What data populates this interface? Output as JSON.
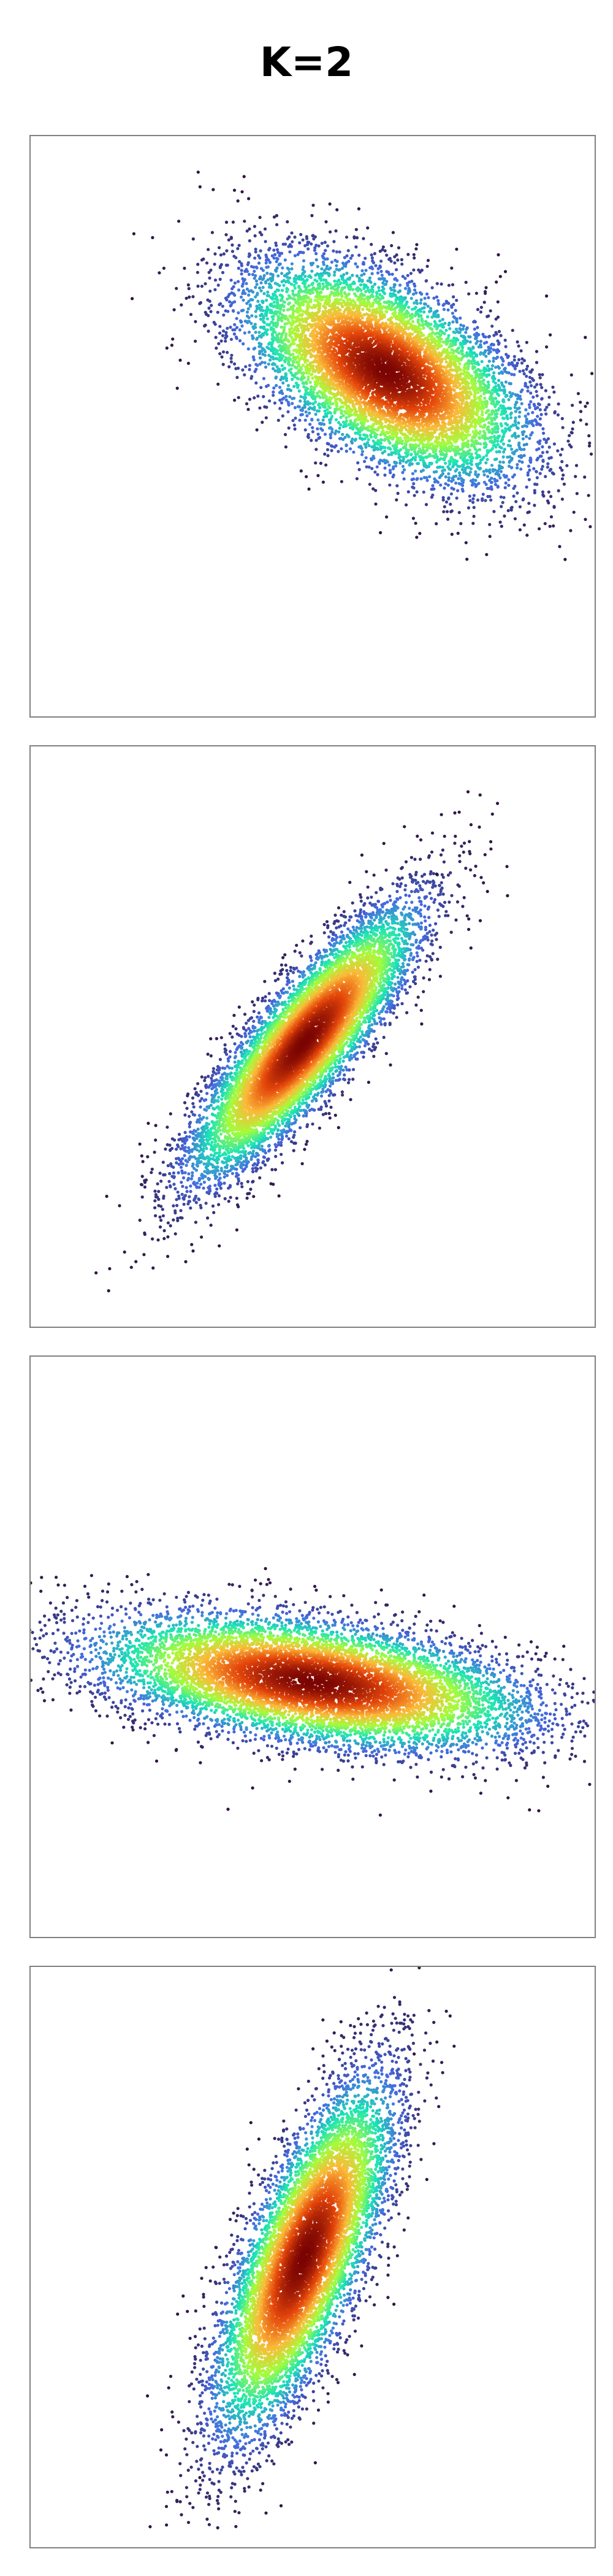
{
  "figure": {
    "title": "K=2"
  },
  "chart_data": [
    {
      "type": "scatter",
      "title": "",
      "xlabel": "",
      "ylabel": "",
      "grid": false,
      "xlim": [
        0,
        1
      ],
      "ylim": [
        0,
        1
      ],
      "colormap": "turbo",
      "colormap_stops": [
        "#30123b",
        "#4669e0",
        "#1ae4b6",
        "#a4fc3b",
        "#fbb938",
        "#e4460a",
        "#7a0403"
      ],
      "distribution": {
        "kind": "gaussian",
        "center": [
          0.63,
          0.595
        ],
        "major_axis_sd": 0.137,
        "minor_axis_sd": 0.069,
        "major_axis_angle_deg": -31,
        "point_count": 9000
      },
      "outliers": [
        [
          0.18,
          0.72
        ]
      ]
    },
    {
      "type": "scatter",
      "title": "",
      "xlabel": "",
      "ylabel": "",
      "grid": false,
      "xlim": [
        0,
        1
      ],
      "ylim": [
        0,
        1
      ],
      "colormap": "turbo",
      "colormap_stops": [
        "#30123b",
        "#4669e0",
        "#1ae4b6",
        "#a4fc3b",
        "#fbb938",
        "#e4460a",
        "#7a0403"
      ],
      "distribution": {
        "kind": "gaussian",
        "center": [
          0.485,
          0.49
        ],
        "major_axis_sd": 0.145,
        "minor_axis_sd": 0.04,
        "major_axis_angle_deg": 50,
        "point_count": 9000
      },
      "outliers": [
        [
          0.81,
          0.75
        ],
        [
          0.72,
          0.78
        ]
      ]
    },
    {
      "type": "scatter",
      "title": "",
      "xlabel": "",
      "ylabel": "",
      "grid": false,
      "xlim": [
        0,
        1
      ],
      "ylim": [
        0,
        1
      ],
      "colormap": "turbo",
      "colormap_stops": [
        "#30123b",
        "#4669e0",
        "#1ae4b6",
        "#a4fc3b",
        "#fbb938",
        "#e4460a",
        "#7a0403"
      ],
      "distribution": {
        "kind": "gaussian",
        "center": [
          0.5,
          0.44
        ],
        "major_axis_sd": 0.19,
        "minor_axis_sd": 0.05,
        "major_axis_angle_deg": -8,
        "point_count": 9000
      },
      "outliers": [
        [
          0.0,
          0.61
        ],
        [
          0.35,
          0.22
        ],
        [
          0.62,
          0.21
        ]
      ]
    },
    {
      "type": "scatter",
      "title": "",
      "xlabel": "",
      "ylabel": "",
      "grid": false,
      "xlim": [
        0,
        1
      ],
      "ylim": [
        0,
        1
      ],
      "colormap": "turbo",
      "colormap_stops": [
        "#30123b",
        "#4669e0",
        "#1ae4b6",
        "#a4fc3b",
        "#fbb938",
        "#e4460a",
        "#7a0403"
      ],
      "distribution": {
        "kind": "gaussian",
        "center": [
          0.485,
          0.5
        ],
        "major_axis_sd": 0.16,
        "minor_axis_sd": 0.048,
        "major_axis_angle_deg": 67,
        "point_count": 9000
      },
      "outliers": [
        [
          0.3,
          0.12
        ],
        [
          0.68,
          0.85
        ]
      ]
    }
  ]
}
